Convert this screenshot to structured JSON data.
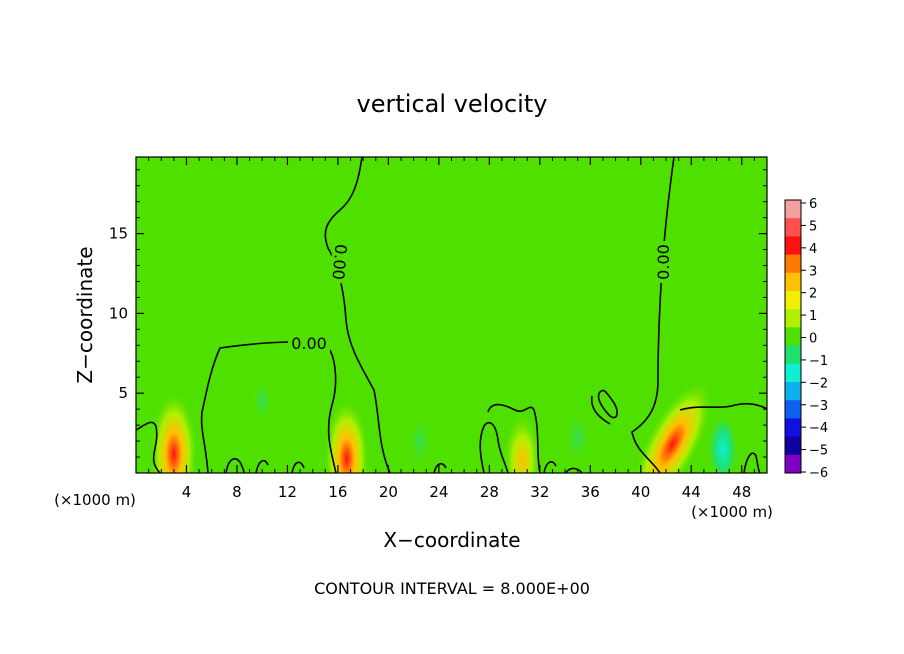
{
  "chart_data": {
    "type": "heatmap",
    "title": "vertical velocity",
    "xlabel": "X−coordinate",
    "ylabel": "Z−coordinate",
    "x_unit_left": "(×1000 m)",
    "x_unit_right": "(×1000 m)",
    "xlim": [
      0,
      50
    ],
    "ylim": [
      0,
      19.8
    ],
    "xticks": [
      4,
      8,
      12,
      16,
      20,
      24,
      28,
      32,
      36,
      40,
      44,
      48
    ],
    "yticks": [
      5,
      10,
      15
    ],
    "footer": "CONTOUR INTERVAL = 8.000E+00",
    "contour_label": "0.00",
    "colorbar": {
      "ticks": [
        6,
        5,
        4,
        3,
        2,
        1,
        0,
        -1,
        -2,
        -3,
        -4,
        -5,
        -6
      ],
      "tick_labels": [
        "6",
        "5",
        "4",
        "3",
        "2",
        "1",
        "0",
        "−1",
        "−2",
        "−3",
        "−4",
        "−5",
        "−6"
      ],
      "colors": [
        "#f4a0a0",
        "#ff5050",
        "#ff1010",
        "#ff7a00",
        "#ffc000",
        "#f0f000",
        "#b0f000",
        "#50e000",
        "#20e070",
        "#10f0d0",
        "#10b0f0",
        "#1060f0",
        "#1010e0",
        "#1000a0",
        "#8000c0"
      ]
    },
    "features": [
      {
        "x": 3,
        "z": 1.2,
        "value": 4.5
      },
      {
        "x": 16.7,
        "z": 0.9,
        "value": 4.2
      },
      {
        "x": 30.6,
        "z": 0.8,
        "value": 3.0
      },
      {
        "x": 42.5,
        "z": 1.8,
        "value": 5.3
      },
      {
        "x": 46.5,
        "z": 1.5,
        "value": -1.8
      },
      {
        "x": 35,
        "z": 2.2,
        "value": -1.0
      },
      {
        "x": 22.5,
        "z": 2.0,
        "value": -0.8
      },
      {
        "x": 10,
        "z": 4.5,
        "value": -0.4
      }
    ]
  }
}
